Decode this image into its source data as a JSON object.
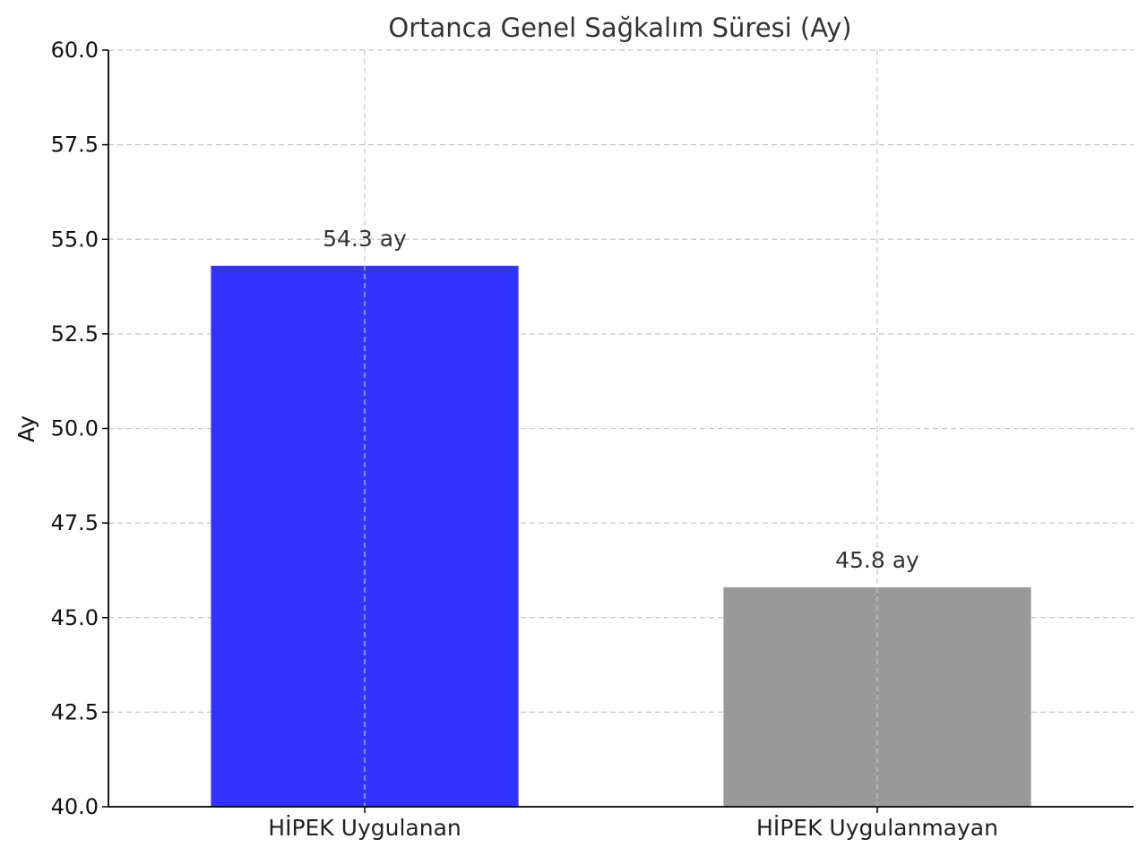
{
  "chart_data": {
    "type": "bar",
    "title": "Ortanca Genel Sağkalım Süresi (Ay)",
    "xlabel": "",
    "ylabel": "Ay",
    "categories": [
      "HİPEK Uygulanan",
      "HİPEK Uygulanmayan"
    ],
    "values": [
      54.3,
      45.8
    ],
    "value_labels": [
      "54.3 ay",
      "45.8 ay"
    ],
    "colors": [
      "#3333ff",
      "#999999"
    ],
    "ylim": [
      40.0,
      60.0
    ],
    "yticks": [
      40.0,
      42.5,
      45.0,
      47.5,
      50.0,
      52.5,
      55.0,
      57.5,
      60.0
    ],
    "ytick_labels": [
      "40.0",
      "42.5",
      "45.0",
      "47.5",
      "50.0",
      "52.5",
      "55.0",
      "57.5",
      "60.0"
    ],
    "grid": true,
    "grid_style": "dashed"
  }
}
